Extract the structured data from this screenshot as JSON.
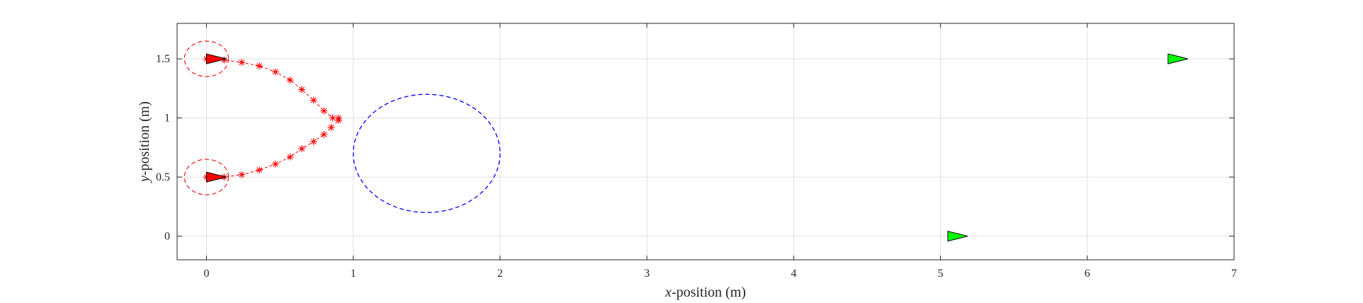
{
  "chart_data": {
    "type": "scatter",
    "title": "",
    "xlabel": {
      "var": "x",
      "rest": "-position (m)"
    },
    "ylabel": {
      "var": "y",
      "rest": "-position (m)"
    },
    "xlim": [
      -0.2,
      7
    ],
    "ylim": [
      -0.2,
      1.8
    ],
    "x_ticks": [
      0,
      1,
      2,
      3,
      4,
      5,
      6,
      7
    ],
    "x_tick_labels": [
      "0",
      "1",
      "2",
      "3",
      "4",
      "5",
      "6",
      "7"
    ],
    "y_ticks": [
      0,
      0.5,
      1,
      1.5
    ],
    "y_tick_labels": [
      "0",
      "0.5",
      "1",
      "1.5"
    ],
    "grid": true,
    "colors": {
      "trajectory": "#ff0000",
      "obstacle": "#0000ff",
      "agent_fill": "#ff0000",
      "goal_fill": "#00ff00",
      "grid": "#dfdfdf",
      "axes": "#262626"
    },
    "trajectories": [
      {
        "points": [
          [
            0.0,
            1.5
          ],
          [
            0.12,
            1.49
          ],
          [
            0.24,
            1.47
          ],
          [
            0.36,
            1.44
          ],
          [
            0.47,
            1.39
          ],
          [
            0.57,
            1.32
          ],
          [
            0.65,
            1.24
          ],
          [
            0.73,
            1.15
          ],
          [
            0.8,
            1.06
          ],
          [
            0.86,
            1.0
          ],
          [
            0.9,
            1.0
          ]
        ]
      },
      {
        "points": [
          [
            0.0,
            0.5
          ],
          [
            0.12,
            0.5
          ],
          [
            0.24,
            0.52
          ],
          [
            0.36,
            0.56
          ],
          [
            0.47,
            0.61
          ],
          [
            0.57,
            0.67
          ],
          [
            0.65,
            0.74
          ],
          [
            0.73,
            0.8
          ],
          [
            0.8,
            0.86
          ],
          [
            0.85,
            0.92
          ],
          [
            0.9,
            0.98
          ]
        ]
      }
    ],
    "agents": [
      {
        "x": 0.0,
        "y": 1.5,
        "heading_deg": 0,
        "safety_radius": 0.15
      },
      {
        "x": 0.0,
        "y": 0.5,
        "heading_deg": 0,
        "safety_radius": 0.15
      }
    ],
    "goals": [
      {
        "x": 6.55,
        "y": 1.5,
        "heading_deg": 0
      },
      {
        "x": 5.05,
        "y": 0.0,
        "heading_deg": 0
      }
    ],
    "obstacle": {
      "cx": 1.5,
      "cy": 0.7,
      "rx": 0.5,
      "ry": 0.5
    }
  }
}
